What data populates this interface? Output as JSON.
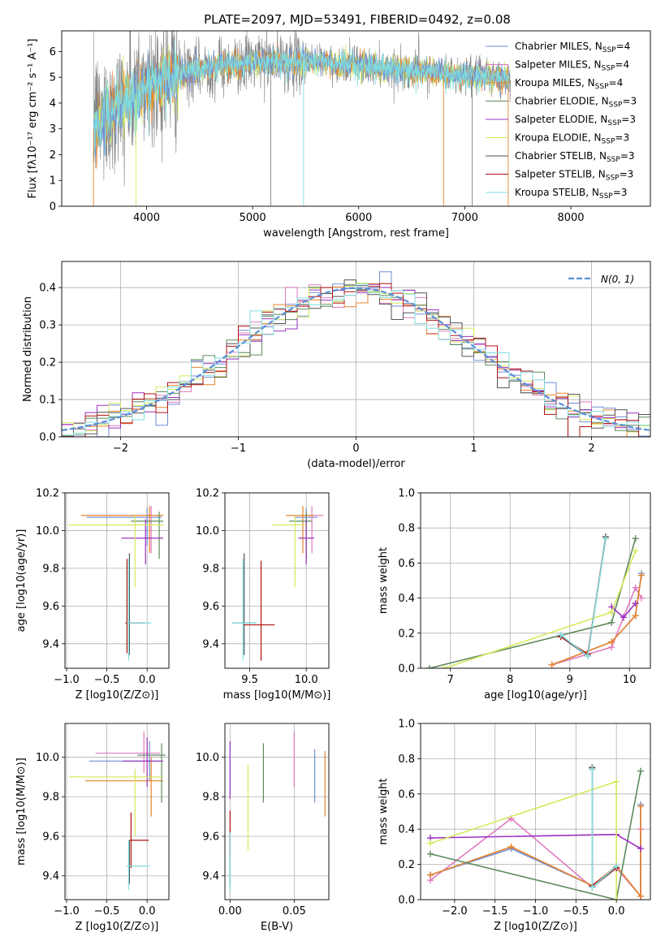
{
  "title": "PLATE=2097, MJD=53491, FIBERID=0492, z=0.08",
  "colors": {
    "chabrier_miles": "#6f8fd8",
    "salpeter_miles": "#e07bc0",
    "kroupa_miles": "#e8832a",
    "chabrier_elodie": "#5c8a5c",
    "salpeter_elodie": "#9b30c0",
    "kroupa_elodie": "#d4ea5a",
    "chabrier_stelib": "#555555",
    "salpeter_stelib": "#b01010",
    "kroupa_stelib": "#80dede",
    "data": "#808080",
    "normal": "#5b8fd8"
  },
  "chart_data": [
    {
      "id": "spectrum",
      "type": "line",
      "xlabel": "wavelength [Angstrom, rest frame]",
      "ylabel": "Flux [fλ10⁻¹⁷ erg cm⁻² s⁻¹ A⁻¹]",
      "xlim": [
        3200,
        8750
      ],
      "ylim": [
        0,
        6.8
      ],
      "xticks": [
        4000,
        5000,
        6000,
        7000,
        8000
      ],
      "yticks": [
        0,
        1,
        2,
        3,
        4,
        5,
        6
      ],
      "continuum": {
        "x": [
          3500,
          3600,
          3700,
          3800,
          3900,
          4000,
          4100,
          4200,
          4300,
          4400,
          4500,
          4600,
          4700,
          4800,
          4900,
          5000,
          5100,
          5200,
          5300,
          5400,
          5500,
          5600,
          5700,
          5800,
          5900,
          6000,
          6100,
          6200,
          6300,
          6400,
          6500,
          6600,
          6700,
          6800,
          6900,
          7000,
          7100,
          7200,
          7300,
          7400
        ],
        "y": [
          3.0,
          3.4,
          3.7,
          4.0,
          4.3,
          4.6,
          4.8,
          5.0,
          5.1,
          5.2,
          5.3,
          5.35,
          5.45,
          5.5,
          5.5,
          5.6,
          5.6,
          5.6,
          5.65,
          5.6,
          5.6,
          5.65,
          5.6,
          5.5,
          5.5,
          5.5,
          5.4,
          5.4,
          5.35,
          5.3,
          5.25,
          5.2,
          5.2,
          5.15,
          5.1,
          5.1,
          5.05,
          5.0,
          5.0,
          4.95
        ]
      },
      "legend": [
        {
          "name": "Chabrier MILES, N",
          "sub": "SSP",
          "suffix": "=4",
          "key": "chabrier_miles"
        },
        {
          "name": "Salpeter MILES, N",
          "sub": "SSP",
          "suffix": "=4",
          "key": "salpeter_miles"
        },
        {
          "name": "Kroupa MILES, N",
          "sub": "SSP",
          "suffix": "=4",
          "key": "kroupa_miles"
        },
        {
          "name": "Chabrier ELODIE, N",
          "sub": "SSP",
          "suffix": "=3",
          "key": "chabrier_elodie"
        },
        {
          "name": "Salpeter ELODIE, N",
          "sub": "SSP",
          "suffix": "=3",
          "key": "salpeter_elodie"
        },
        {
          "name": "Kroupa ELODIE, N",
          "sub": "SSP",
          "suffix": "=3",
          "key": "kroupa_elodie"
        },
        {
          "name": "Chabrier STELIB, N",
          "sub": "SSP",
          "suffix": "=3",
          "key": "chabrier_stelib"
        },
        {
          "name": "Salpeter STELIB, N",
          "sub": "SSP",
          "suffix": "=3",
          "key": "salpeter_stelib"
        },
        {
          "name": "Kroupa STELIB, N",
          "sub": "SSP",
          "suffix": "=3",
          "key": "kroupa_stelib"
        }
      ],
      "legend_loc": "upper-right"
    },
    {
      "id": "residuals",
      "type": "histogram",
      "xlabel": "(data-model)/error",
      "ylabel": "Normed distribution",
      "xlim": [
        -2.5,
        2.5
      ],
      "ylim": [
        0,
        0.47
      ],
      "xticks": [
        -2,
        -1,
        0,
        1,
        2
      ],
      "yticks": [
        0.0,
        0.1,
        0.2,
        0.3,
        0.4
      ],
      "bin_width": 0.1,
      "legend": [
        {
          "name": "N(0, 1)",
          "key": "normal"
        }
      ],
      "legend_loc": "upper-right",
      "grid": true
    },
    {
      "id": "age_vs_Z",
      "type": "scatter",
      "xlabel": "Z [log10(Z/Z⊙)]",
      "ylabel": "age [log10(age/yr)]",
      "xlim": [
        -1.02,
        0.27
      ],
      "ylim": [
        9.27,
        10.2
      ],
      "xticks": [
        -1.0,
        -0.5,
        0.0
      ],
      "yticks": [
        9.4,
        9.6,
        9.8,
        10.0,
        10.2
      ],
      "points": [
        {
          "key": "chabrier_miles",
          "x": 0.0,
          "y": 10.07,
          "xerr": [
            0.75,
            0.18
          ],
          "yerr": [
            0.15,
            0.05
          ]
        },
        {
          "key": "salpeter_miles",
          "x": 0.05,
          "y": 10.08,
          "xerr": [
            0.8,
            0.15
          ],
          "yerr": [
            0.2,
            0.05
          ]
        },
        {
          "key": "kroupa_miles",
          "x": 0.03,
          "y": 10.08,
          "xerr": [
            0.85,
            0.17
          ],
          "yerr": [
            0.2,
            0.05
          ]
        },
        {
          "key": "chabrier_elodie",
          "x": 0.15,
          "y": 10.05,
          "xerr": [
            0.35,
            0.05
          ],
          "yerr": [
            0.2,
            0.05
          ]
        },
        {
          "key": "salpeter_elodie",
          "x": -0.02,
          "y": 9.96,
          "xerr": [
            0.3,
            0.22
          ],
          "yerr": [
            0.14,
            0.1
          ]
        },
        {
          "key": "kroupa_elodie",
          "x": -0.15,
          "y": 10.03,
          "xerr": [
            0.82,
            0.35
          ],
          "yerr": [
            0.33,
            0.05
          ]
        },
        {
          "key": "chabrier_stelib",
          "x": -0.22,
          "y": 9.51,
          "xerr": [
            0.02,
            0.2
          ],
          "yerr": [
            0.17,
            0.37
          ]
        },
        {
          "key": "salpeter_stelib",
          "x": -0.25,
          "y": 9.51,
          "xerr": [
            0.02,
            0.2
          ],
          "yerr": [
            0.16,
            0.34
          ]
        },
        {
          "key": "kroupa_stelib",
          "x": -0.23,
          "y": 9.51,
          "xerr": [
            0.02,
            0.28
          ],
          "yerr": [
            0.2,
            0.34
          ]
        }
      ],
      "grid": true
    },
    {
      "id": "age_vs_mass",
      "type": "scatter",
      "xlabel": "mass [log10(M/M⊙)]",
      "ylabel": "",
      "xlim": [
        9.28,
        10.2
      ],
      "ylim": [
        9.27,
        10.2
      ],
      "xticks": [
        9.5,
        10.0
      ],
      "yticks": [
        9.4,
        9.6,
        9.8,
        10.0,
        10.2
      ],
      "points": [
        {
          "key": "chabrier_miles",
          "x": 10.0,
          "y": 10.07,
          "xerr": [
            0.1,
            0.1
          ],
          "yerr": [
            0.15,
            0.05
          ]
        },
        {
          "key": "salpeter_miles",
          "x": 10.05,
          "y": 10.08,
          "xerr": [
            0.1,
            0.1
          ],
          "yerr": [
            0.2,
            0.05
          ]
        },
        {
          "key": "kroupa_miles",
          "x": 9.97,
          "y": 10.08,
          "xerr": [
            0.15,
            0.1
          ],
          "yerr": [
            0.2,
            0.05
          ]
        },
        {
          "key": "chabrier_elodie",
          "x": 10.0,
          "y": 10.05,
          "xerr": [
            0.15,
            0.05
          ],
          "yerr": [
            0.2,
            0.05
          ]
        },
        {
          "key": "salpeter_elodie",
          "x": 10.0,
          "y": 9.96,
          "xerr": [
            0.07,
            0.07
          ],
          "yerr": [
            0.14,
            0.1
          ]
        },
        {
          "key": "kroupa_elodie",
          "x": 9.9,
          "y": 10.03,
          "xerr": [
            0.2,
            0.1
          ],
          "yerr": [
            0.33,
            0.05
          ]
        },
        {
          "key": "chabrier_stelib",
          "x": 9.45,
          "y": 9.51,
          "xerr": [
            0.1,
            0.1
          ],
          "yerr": [
            0.17,
            0.37
          ]
        },
        {
          "key": "salpeter_stelib",
          "x": 9.6,
          "y": 9.5,
          "xerr": [
            0.15,
            0.12
          ],
          "yerr": [
            0.19,
            0.34
          ]
        },
        {
          "key": "kroupa_stelib",
          "x": 9.44,
          "y": 9.51,
          "xerr": [
            0.1,
            0.12
          ],
          "yerr": [
            0.2,
            0.34
          ]
        }
      ],
      "grid": true
    },
    {
      "id": "weight_vs_age",
      "type": "line",
      "xlabel": "age [log10(age/yr)]",
      "ylabel": "mass weight",
      "xlim": [
        6.5,
        10.35
      ],
      "ylim": [
        0,
        1.0
      ],
      "xticks": [
        7,
        8,
        9,
        10
      ],
      "yticks": [
        0.0,
        0.2,
        0.4,
        0.6,
        0.8,
        1.0
      ],
      "series": [
        {
          "key": "chabrier_miles",
          "x": [
            8.7,
            9.7,
            10.1,
            10.2
          ],
          "y": [
            0.02,
            0.15,
            0.3,
            0.54
          ]
        },
        {
          "key": "salpeter_miles",
          "x": [
            8.7,
            9.7,
            10.1,
            10.2
          ],
          "y": [
            0.02,
            0.12,
            0.46,
            0.4
          ]
        },
        {
          "key": "kroupa_miles",
          "x": [
            8.7,
            9.7,
            10.1,
            10.2
          ],
          "y": [
            0.02,
            0.15,
            0.3,
            0.53
          ]
        },
        {
          "key": "chabrier_elodie",
          "x": [
            6.65,
            9.7,
            10.1
          ],
          "y": [
            0.0,
            0.26,
            0.74
          ]
        },
        {
          "key": "salpeter_elodie",
          "x": [
            9.7,
            9.9,
            10.1
          ],
          "y": [
            0.35,
            0.29,
            0.37
          ]
        },
        {
          "key": "kroupa_elodie",
          "x": [
            6.9,
            9.7,
            10.1
          ],
          "y": [
            0.0,
            0.32,
            0.67
          ]
        },
        {
          "key": "chabrier_stelib",
          "x": [
            8.85,
            9.3,
            9.6
          ],
          "y": [
            0.18,
            0.07,
            0.75
          ]
        },
        {
          "key": "salpeter_stelib",
          "x": [
            8.85,
            9.3,
            9.6
          ],
          "y": [
            0.18,
            0.08,
            0.74
          ]
        },
        {
          "key": "kroupa_stelib",
          "x": [
            8.85,
            9.3,
            9.6
          ],
          "y": [
            0.19,
            0.07,
            0.74
          ]
        }
      ],
      "grid": true
    },
    {
      "id": "mass_vs_Z",
      "type": "scatter",
      "xlabel": "Z [log10(Z/Z⊙)]",
      "ylabel": "mass [log10(M/M⊙)]",
      "xlim": [
        -1.02,
        0.27
      ],
      "ylim": [
        9.28,
        10.17
      ],
      "xticks": [
        -1.0,
        -0.5,
        0.0
      ],
      "yticks": [
        9.4,
        9.6,
        9.8,
        10.0
      ],
      "points": [
        {
          "key": "chabrier_miles",
          "x": 0.03,
          "y": 9.98,
          "xerr": [
            0.75,
            0.15
          ],
          "yerr": [
            0.1,
            0.1
          ]
        },
        {
          "key": "salpeter_miles",
          "x": -0.04,
          "y": 10.02,
          "xerr": [
            0.6,
            0.2
          ],
          "yerr": [
            0.1,
            0.11
          ]
        },
        {
          "key": "kroupa_miles",
          "x": 0.05,
          "y": 9.88,
          "xerr": [
            0.82,
            0.15
          ],
          "yerr": [
            0.18,
            0.12
          ]
        },
        {
          "key": "chabrier_elodie",
          "x": 0.18,
          "y": 10.01,
          "xerr": [
            0.3,
            0.05
          ],
          "yerr": [
            0.24,
            0.06
          ]
        },
        {
          "key": "salpeter_elodie",
          "x": 0.0,
          "y": 9.98,
          "xerr": [
            0.3,
            0.2
          ],
          "yerr": [
            0.13,
            0.12
          ]
        },
        {
          "key": "kroupa_elodie",
          "x": -0.15,
          "y": 9.9,
          "xerr": [
            0.82,
            0.35
          ],
          "yerr": [
            0.3,
            0.04
          ]
        },
        {
          "key": "chabrier_stelib",
          "x": -0.22,
          "y": 9.45,
          "xerr": [
            0.03,
            0.2
          ],
          "yerr": [
            0.09,
            0.13
          ]
        },
        {
          "key": "salpeter_stelib",
          "x": -0.2,
          "y": 9.58,
          "xerr": [
            0.02,
            0.22
          ],
          "yerr": [
            0.14,
            0.14
          ]
        },
        {
          "key": "kroupa_stelib",
          "x": -0.23,
          "y": 9.45,
          "xerr": [
            0.02,
            0.27
          ],
          "yerr": [
            0.12,
            0.13
          ]
        }
      ],
      "grid": true
    },
    {
      "id": "mass_vs_ebv",
      "type": "scatter",
      "xlabel": "E(B-V)",
      "ylabel": "",
      "xlim": [
        -0.004,
        0.077
      ],
      "ylim": [
        9.28,
        10.17
      ],
      "xticks": [
        0.0,
        0.05
      ],
      "yticks": [
        9.4,
        9.6,
        9.8,
        10.0
      ],
      "points": [
        {
          "key": "chabrier_miles",
          "x": 0.066,
          "y": 9.9,
          "yerr": [
            0.13,
            0.14
          ]
        },
        {
          "key": "salpeter_miles",
          "x": 0.05,
          "y": 10.0,
          "yerr": [
            0.15,
            0.13
          ]
        },
        {
          "key": "kroupa_miles",
          "x": 0.074,
          "y": 9.87,
          "yerr": [
            0.17,
            0.16
          ]
        },
        {
          "key": "chabrier_elodie",
          "x": 0.026,
          "y": 9.92,
          "yerr": [
            0.15,
            0.15
          ]
        },
        {
          "key": "salpeter_elodie",
          "x": 0.0,
          "y": 9.94,
          "yerr": [
            0.15,
            0.14
          ]
        },
        {
          "key": "kroupa_elodie",
          "x": 0.014,
          "y": 9.75,
          "yerr": [
            0.22,
            0.21
          ]
        },
        {
          "key": "chabrier_stelib",
          "x": 0.0,
          "y": 9.45,
          "yerr": [
            0.1,
            0.18
          ]
        },
        {
          "key": "salpeter_stelib",
          "x": 0.0,
          "y": 9.6,
          "yerr": [
            0.11,
            0.13
          ]
        },
        {
          "key": "kroupa_stelib",
          "x": 0.0,
          "y": 9.46,
          "yerr": [
            0.14,
            0.16
          ]
        }
      ],
      "grid": true
    },
    {
      "id": "weight_vs_Z",
      "type": "line",
      "xlabel": "Z [log10(Z/Z⊙)]",
      "ylabel": "mass weight",
      "xlim": [
        -2.42,
        0.42
      ],
      "ylim": [
        0,
        1.0
      ],
      "xticks": [
        -2.0,
        -1.5,
        -1.0,
        -0.5,
        0.0
      ],
      "yticks": [
        0.0,
        0.2,
        0.4,
        0.6,
        0.8,
        1.0
      ],
      "series": [
        {
          "key": "chabrier_miles",
          "x": [
            -2.3,
            -1.3,
            -0.3,
            0.0,
            0.3,
            0.3
          ],
          "y": [
            0.14,
            0.29,
            0.08,
            0.19,
            0.02,
            0.54
          ]
        },
        {
          "key": "salpeter_miles",
          "x": [
            -2.3,
            -1.3,
            -0.3,
            0.0,
            0.3,
            0.3
          ],
          "y": [
            0.11,
            0.46,
            0.07,
            0.18,
            0.02,
            0.4
          ]
        },
        {
          "key": "kroupa_miles",
          "x": [
            -2.3,
            -1.3,
            -0.3,
            0.0,
            0.3,
            0.3
          ],
          "y": [
            0.14,
            0.3,
            0.08,
            0.19,
            0.02,
            0.53
          ]
        },
        {
          "key": "chabrier_elodie",
          "x": [
            -2.3,
            0.0,
            0.3
          ],
          "y": [
            0.26,
            0.0,
            0.73
          ]
        },
        {
          "key": "salpeter_elodie",
          "x": [
            -2.3,
            0.0,
            0.3
          ],
          "y": [
            0.35,
            0.37,
            0.29
          ]
        },
        {
          "key": "kroupa_elodie",
          "x": [
            -2.3,
            0.0,
            0.0
          ],
          "y": [
            0.32,
            0.67,
            0.0
          ]
        },
        {
          "key": "chabrier_stelib",
          "x": [
            -0.3,
            -0.3,
            0.0
          ],
          "y": [
            0.75,
            0.07,
            0.18
          ]
        },
        {
          "key": "salpeter_stelib",
          "x": [
            -0.3,
            -0.3,
            0.0
          ],
          "y": [
            0.74,
            0.08,
            0.18
          ]
        },
        {
          "key": "kroupa_stelib",
          "x": [
            -0.3,
            -0.3,
            0.0
          ],
          "y": [
            0.74,
            0.07,
            0.19
          ]
        }
      ],
      "grid": true
    }
  ]
}
